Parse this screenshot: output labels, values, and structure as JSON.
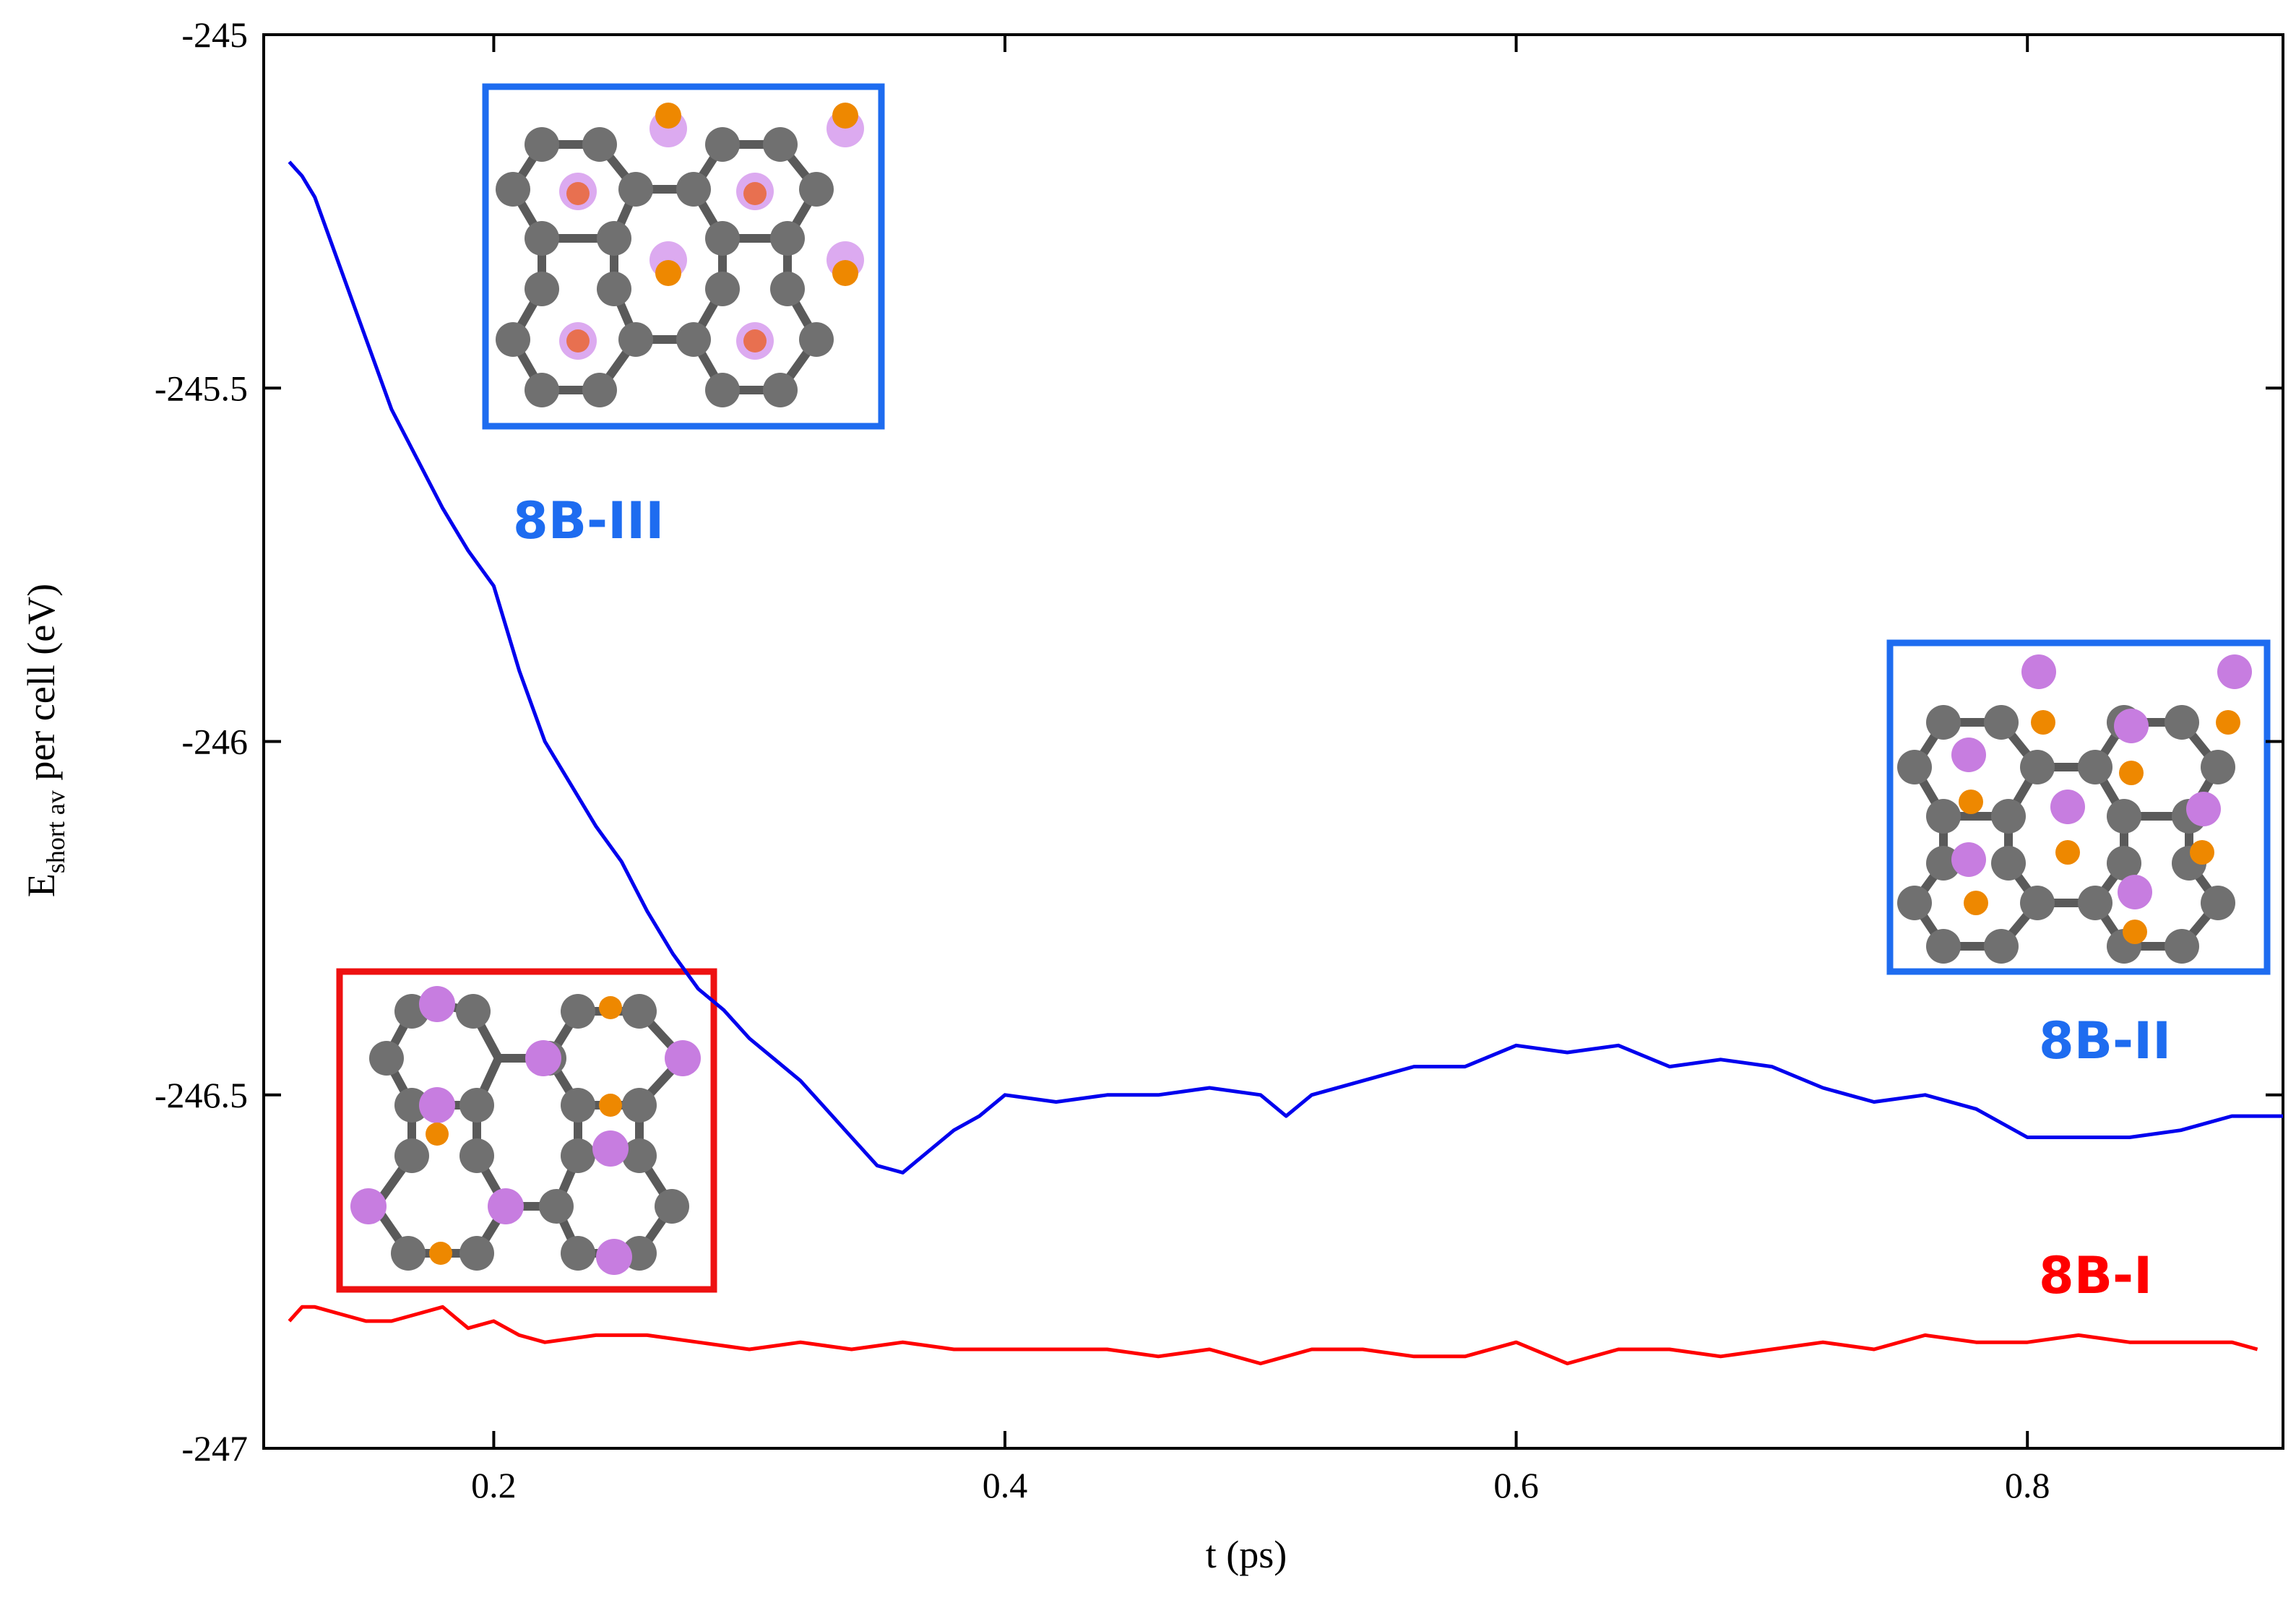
{
  "chart_data": {
    "type": "line",
    "xlabel": "t  (ps)",
    "ylabel": {
      "base": "E",
      "subscript": "short av",
      "rest": " per cell  (eV)"
    },
    "xlim": [
      0.11,
      0.9
    ],
    "ylim": [
      -247,
      -245
    ],
    "x_ticks": [
      0.2,
      0.4,
      0.6,
      0.8
    ],
    "x_tick_labels": [
      "0.2",
      "0.4",
      "0.6",
      "0.8"
    ],
    "y_ticks": [
      -245,
      -245.5,
      -246,
      -246.5,
      -247
    ],
    "y_tick_labels": [
      "-245",
      "-245.5",
      "-246",
      "-246.5",
      "-247"
    ],
    "grid": false,
    "colors": {
      "series_blue": "#0000ee",
      "series_red": "#ff0000",
      "label_blue": "#1e6cf0",
      "box_blue": "#1e6cf0",
      "box_red": "#ee1111",
      "carbon": "#707070",
      "pink": "#c77de0",
      "orange": "#ee8800"
    },
    "series": [
      {
        "label": "8B-III",
        "color": "#0000ee",
        "x": [
          0.12,
          0.125,
          0.13,
          0.14,
          0.15,
          0.16,
          0.17,
          0.18,
          0.19,
          0.2,
          0.21,
          0.22,
          0.23,
          0.24,
          0.25,
          0.26,
          0.27,
          0.28,
          0.29,
          0.3,
          0.31,
          0.32,
          0.33,
          0.34,
          0.35,
          0.36,
          0.37,
          0.38,
          0.39,
          0.4,
          0.42,
          0.44,
          0.46,
          0.48,
          0.5,
          0.51,
          0.52,
          0.54,
          0.56,
          0.58,
          0.6,
          0.62,
          0.64,
          0.66,
          0.68,
          0.7,
          0.72,
          0.74,
          0.76,
          0.78,
          0.8,
          0.82,
          0.84,
          0.86,
          0.88,
          0.9
        ],
        "y": [
          -245.18,
          -245.2,
          -245.23,
          -245.33,
          -245.43,
          -245.53,
          -245.6,
          -245.67,
          -245.73,
          -245.78,
          -245.9,
          -246.0,
          -246.06,
          -246.12,
          -246.17,
          -246.24,
          -246.3,
          -246.35,
          -246.38,
          -246.42,
          -246.45,
          -246.48,
          -246.52,
          -246.56,
          -246.6,
          -246.61,
          -246.58,
          -246.55,
          -246.53,
          -246.5,
          -246.51,
          -246.5,
          -246.5,
          -246.49,
          -246.5,
          -246.53,
          -246.5,
          -246.48,
          -246.46,
          -246.46,
          -246.43,
          -246.44,
          -246.43,
          -246.46,
          -246.45,
          -246.46,
          -246.49,
          -246.51,
          -246.5,
          -246.52,
          -246.56,
          -246.56,
          -246.56,
          -246.55,
          -246.53,
          -246.53
        ]
      },
      {
        "label": "8B-I",
        "color": "#ff0000",
        "x": [
          0.12,
          0.125,
          0.13,
          0.14,
          0.15,
          0.16,
          0.17,
          0.18,
          0.19,
          0.2,
          0.21,
          0.22,
          0.24,
          0.26,
          0.28,
          0.3,
          0.32,
          0.34,
          0.36,
          0.38,
          0.4,
          0.42,
          0.44,
          0.46,
          0.48,
          0.5,
          0.52,
          0.54,
          0.56,
          0.58,
          0.6,
          0.62,
          0.64,
          0.66,
          0.68,
          0.7,
          0.72,
          0.74,
          0.76,
          0.78,
          0.8,
          0.82,
          0.84,
          0.86,
          0.88,
          0.89
        ],
        "y": [
          -246.82,
          -246.8,
          -246.8,
          -246.81,
          -246.82,
          -246.82,
          -246.81,
          -246.8,
          -246.83,
          -246.82,
          -246.84,
          -246.85,
          -246.84,
          -246.84,
          -246.85,
          -246.86,
          -246.85,
          -246.86,
          -246.85,
          -246.86,
          -246.86,
          -246.86,
          -246.86,
          -246.87,
          -246.86,
          -246.88,
          -246.86,
          -246.86,
          -246.87,
          -246.87,
          -246.85,
          -246.88,
          -246.86,
          -246.86,
          -246.87,
          -246.86,
          -246.85,
          -246.86,
          -246.84,
          -246.85,
          -246.85,
          -246.84,
          -246.85,
          -246.85,
          -246.85,
          -246.86
        ]
      }
    ],
    "annotations": [
      {
        "text": "8B-III",
        "color": "#1e6cf0"
      },
      {
        "text": "8B-II",
        "color": "#1e6cf0"
      },
      {
        "text": "8B-I",
        "color": "#ff0000"
      }
    ]
  }
}
